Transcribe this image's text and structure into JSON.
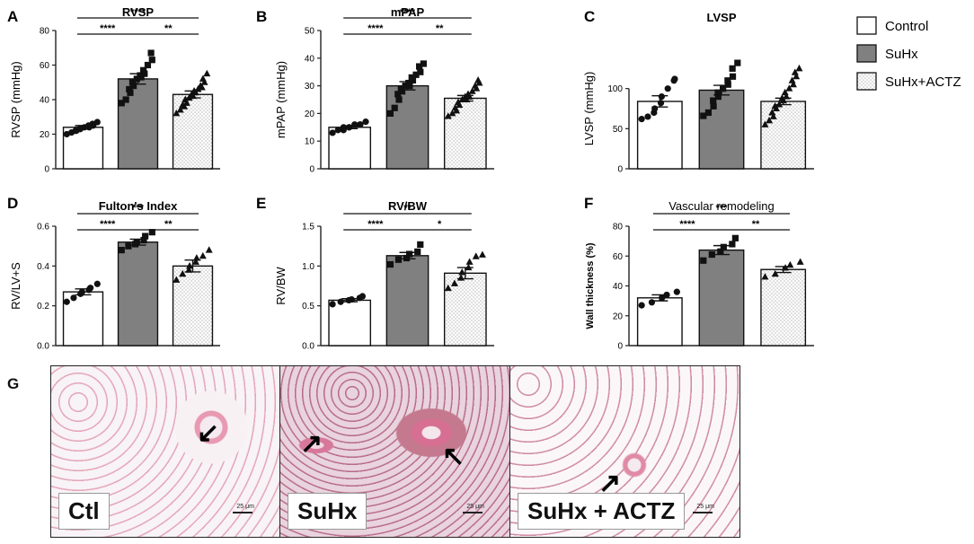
{
  "legend": {
    "items": [
      {
        "label": "Control",
        "color": "#ffffff",
        "pattern": "none"
      },
      {
        "label": "SuHx",
        "color": "#808080",
        "pattern": "none"
      },
      {
        "label": "SuHx+ACTZ",
        "color": "#ffffff",
        "pattern": "dots"
      }
    ]
  },
  "colors": {
    "control": "#ffffff",
    "suhx": "#808080",
    "actz": "#f4f4f4",
    "axis": "#222222"
  },
  "chart_data": [
    {
      "panel": "A",
      "type": "bar",
      "title": "RVSP",
      "ylabel": "RVSP (mmHg)",
      "xlabel": "",
      "ylim": [
        0,
        80
      ],
      "yticks": [
        0,
        20,
        40,
        60,
        80
      ],
      "categories": [
        "Control",
        "SuHx",
        "SuHx+ACTZ"
      ],
      "values": [
        24,
        52,
        43
      ],
      "errors": [
        1,
        3,
        2
      ],
      "markers": [
        "circle",
        "square",
        "triangle"
      ],
      "points": [
        [
          20,
          21,
          22,
          22,
          23,
          23,
          24,
          24,
          25,
          25,
          26,
          27
        ],
        [
          38,
          40,
          44,
          46,
          48,
          50,
          52,
          53,
          54,
          55,
          57,
          60,
          63,
          67
        ],
        [
          32,
          34,
          36,
          37,
          38,
          40,
          41,
          42,
          43,
          44,
          45,
          46,
          47,
          48,
          50,
          52,
          55
        ]
      ],
      "significance": [
        {
          "from": 0,
          "to": 2,
          "label": "****",
          "level": 1
        },
        {
          "from": 0,
          "to": 1,
          "label": "****",
          "level": 0
        },
        {
          "from": 1,
          "to": 2,
          "label": "**",
          "level": 0
        }
      ]
    },
    {
      "panel": "B",
      "type": "bar",
      "title": "mPAP",
      "ylabel": "mPAP (mmHg)",
      "xlabel": "",
      "ylim": [
        0,
        50
      ],
      "yticks": [
        0,
        10,
        20,
        30,
        40,
        50
      ],
      "categories": [
        "Control",
        "SuHx",
        "SuHx+ACTZ"
      ],
      "values": [
        15,
        30,
        25.5
      ],
      "errors": [
        0.5,
        1.5,
        1
      ],
      "markers": [
        "circle",
        "square",
        "triangle"
      ],
      "points": [
        [
          13,
          14,
          14,
          15,
          15,
          15,
          16,
          16,
          16,
          17
        ],
        [
          20,
          22,
          25,
          27,
          28,
          29,
          30,
          30,
          31,
          32,
          33,
          34,
          35,
          37,
          38
        ],
        [
          19,
          20,
          21,
          22,
          23,
          24,
          25,
          25,
          26,
          26,
          27,
          28,
          29,
          30,
          31,
          32
        ]
      ],
      "significance": [
        {
          "from": 0,
          "to": 2,
          "label": "****",
          "level": 1
        },
        {
          "from": 0,
          "to": 1,
          "label": "****",
          "level": 0
        },
        {
          "from": 1,
          "to": 2,
          "label": "**",
          "level": 0
        }
      ]
    },
    {
      "panel": "C",
      "type": "bar",
      "title": "LVSP",
      "ylabel": "LVSP (mmHg)",
      "xlabel": "",
      "ylim": [
        0,
        150
      ],
      "yticks": [
        0,
        50,
        100
      ],
      "categories": [
        "Control",
        "SuHx",
        "SuHx+ACTZ"
      ],
      "values": [
        84,
        98,
        84
      ],
      "errors": [
        7,
        6,
        4
      ],
      "markers": [
        "circle",
        "square",
        "triangle"
      ],
      "points": [
        [
          62,
          65,
          70,
          75,
          82,
          90,
          100,
          110,
          112
        ],
        [
          66,
          70,
          78,
          85,
          90,
          95,
          100,
          105,
          110,
          115,
          125,
          132
        ],
        [
          55,
          60,
          65,
          70,
          75,
          78,
          80,
          85,
          88,
          90,
          95,
          100,
          105,
          110,
          115,
          120,
          125
        ]
      ],
      "significance": []
    },
    {
      "panel": "D",
      "type": "bar",
      "title": "Fulton's Index",
      "ylabel": "RV/LV+S",
      "xlabel": "",
      "ylim": [
        0,
        0.6
      ],
      "yticks": [
        0.0,
        0.2,
        0.4,
        0.6
      ],
      "categories": [
        "Control",
        "SuHx",
        "SuHx+ACTZ"
      ],
      "values": [
        0.27,
        0.52,
        0.4
      ],
      "errors": [
        0.015,
        0.015,
        0.03
      ],
      "markers": [
        "circle",
        "square",
        "triangle"
      ],
      "points": [
        [
          0.22,
          0.24,
          0.26,
          0.27,
          0.28,
          0.29,
          0.31
        ],
        [
          0.48,
          0.5,
          0.51,
          0.52,
          0.53,
          0.55,
          0.57
        ],
        [
          0.33,
          0.36,
          0.38,
          0.4,
          0.42,
          0.44,
          0.45,
          0.48
        ]
      ],
      "significance": [
        {
          "from": 0,
          "to": 2,
          "label": "***",
          "level": 1
        },
        {
          "from": 0,
          "to": 1,
          "label": "****",
          "level": 0
        },
        {
          "from": 1,
          "to": 2,
          "label": "**",
          "level": 0
        }
      ]
    },
    {
      "panel": "E",
      "type": "bar",
      "title": "RV/BW",
      "ylabel": "RV/BW",
      "xlabel": "",
      "ylim": [
        0,
        1.5
      ],
      "yticks": [
        0.0,
        0.5,
        1.0,
        1.5
      ],
      "categories": [
        "Control",
        "SuHx",
        "SuHx+ACTZ"
      ],
      "values": [
        0.57,
        1.13,
        0.91
      ],
      "errors": [
        0.02,
        0.04,
        0.07
      ],
      "markers": [
        "circle",
        "square",
        "triangle"
      ],
      "points": [
        [
          0.52,
          0.55,
          0.57,
          0.58,
          0.6,
          0.62
        ],
        [
          1.02,
          1.08,
          1.1,
          1.15,
          1.18,
          1.27
        ],
        [
          0.72,
          0.78,
          0.85,
          0.92,
          0.98,
          1.05,
          1.12,
          1.14
        ]
      ],
      "significance": [
        {
          "from": 0,
          "to": 2,
          "label": "**",
          "level": 1
        },
        {
          "from": 0,
          "to": 1,
          "label": "****",
          "level": 0
        },
        {
          "from": 1,
          "to": 2,
          "label": "*",
          "level": 0
        }
      ]
    },
    {
      "panel": "F",
      "type": "bar",
      "title": "Vascular remodeling",
      "ylabel": "Wall thickness (%)",
      "xlabel": "",
      "ylim": [
        0,
        80
      ],
      "yticks": [
        0,
        20,
        40,
        60,
        80
      ],
      "categories": [
        "Control",
        "SuHx",
        "SuHx+ACTZ"
      ],
      "values": [
        32,
        64,
        51
      ],
      "errors": [
        2,
        3,
        2
      ],
      "markers": [
        "circle",
        "square",
        "triangle"
      ],
      "points": [
        [
          27,
          29,
          32,
          34,
          36
        ],
        [
          57,
          61,
          63,
          66,
          68,
          72
        ],
        [
          46,
          48,
          52,
          54,
          56
        ]
      ],
      "significance": [
        {
          "from": 0,
          "to": 2,
          "label": "***",
          "level": 1
        },
        {
          "from": 0,
          "to": 1,
          "label": "****",
          "level": 0
        },
        {
          "from": 1,
          "to": 2,
          "label": "**",
          "level": 0
        }
      ]
    }
  ],
  "histology": {
    "panel_label": "G",
    "images": [
      {
        "tag": "Ctl",
        "scale": "25 μm"
      },
      {
        "tag": "SuHx",
        "scale": "25 μm"
      },
      {
        "tag": "SuHx + ACTZ",
        "scale": "25 μm"
      }
    ]
  }
}
